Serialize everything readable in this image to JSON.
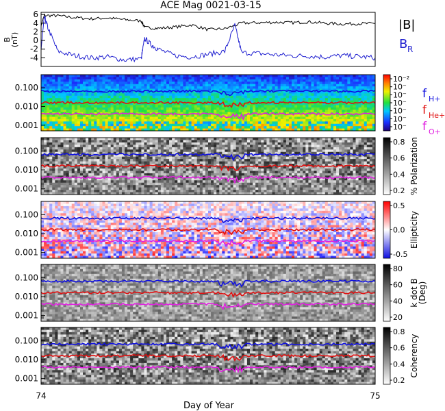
{
  "title": "ACE Mag 0021-03-15",
  "xlabel": "Day of Year",
  "x_ticks": [
    "74",
    "75"
  ],
  "xlim": [
    74,
    75
  ],
  "colors": {
    "B_total": "#000000",
    "B_R": "#1f1fd0",
    "f_H": "#1010e0",
    "f_He": "#e01010",
    "f_O": "#e020e0"
  },
  "legend": {
    "B_total": "|B|",
    "B_R": "B",
    "B_R_sub": "R",
    "f_H": "f",
    "f_H_sub": "H+",
    "f_He": "f",
    "f_He_sub": "He+",
    "f_O": "f",
    "f_O_sub": "O+"
  },
  "chart_data": [
    {
      "type": "line",
      "ylabel": "B",
      "ylabel_units": "(nT)",
      "ylim": [
        -6,
        6.5
      ],
      "y_ticks": [
        "6",
        "4",
        "2",
        "0",
        "-2",
        "-4"
      ],
      "series": [
        {
          "name": "|B|",
          "x": [
            74.0,
            74.01,
            74.05,
            74.1,
            74.15,
            74.2,
            74.25,
            74.3,
            74.31,
            74.35,
            74.4,
            74.45,
            74.5,
            74.55,
            74.6,
            74.65,
            74.7,
            74.75,
            74.8,
            74.85,
            74.9,
            74.95,
            75.0
          ],
          "values": [
            3.5,
            5.8,
            5.7,
            5.3,
            5.0,
            5.2,
            4.8,
            4.5,
            3.0,
            2.8,
            3.1,
            3.6,
            2.5,
            2.7,
            4.0,
            4.1,
            4.2,
            4.1,
            4.3,
            4.0,
            3.8,
            3.9,
            3.9
          ]
        },
        {
          "name": "B_R",
          "x": [
            74.0,
            74.01,
            74.02,
            74.05,
            74.1,
            74.15,
            74.2,
            74.25,
            74.3,
            74.31,
            74.33,
            74.35,
            74.4,
            74.45,
            74.5,
            74.55,
            74.58,
            74.6,
            74.65,
            74.7,
            74.75,
            74.8,
            74.85,
            74.9,
            74.95,
            75.0
          ],
          "values": [
            -2.0,
            5.5,
            3.0,
            -2.5,
            -3.5,
            -4.0,
            -3.8,
            -4.5,
            -4.2,
            0.5,
            -1.0,
            -2.0,
            -3.5,
            -3.8,
            -3.2,
            -2.5,
            3.5,
            -2.8,
            -3.0,
            -3.3,
            -3.5,
            -3.6,
            -3.8,
            -3.5,
            -3.7,
            -4.0
          ]
        }
      ]
    },
    {
      "type": "heatmap",
      "ylabel": "",
      "y_scale": "log",
      "ylim": [
        0.0005,
        0.5
      ],
      "y_ticks": [
        "0.100",
        "0.010",
        "0.001"
      ],
      "colorbar": {
        "label": "",
        "ticks": [
          "10⁻²",
          "10⁻",
          "10⁻",
          "10⁻",
          "10⁻",
          "10⁻",
          "10⁻"
        ]
      },
      "series": [
        {
          "name": "f_H+",
          "values": [
            0.065,
            0.065,
            0.062,
            0.06,
            0.058,
            0.06,
            0.055,
            0.05,
            0.045,
            0.055,
            0.06,
            0.06,
            0.065
          ]
        },
        {
          "name": "f_He+",
          "values": [
            0.017,
            0.016,
            0.016,
            0.015,
            0.015,
            0.015,
            0.014,
            0.013,
            0.011,
            0.014,
            0.015,
            0.015,
            0.016
          ]
        },
        {
          "name": "f_O+",
          "values": [
            0.0042,
            0.004,
            0.004,
            0.0038,
            0.0037,
            0.0038,
            0.0035,
            0.0032,
            0.0028,
            0.0035,
            0.0038,
            0.0038,
            0.004
          ]
        }
      ]
    },
    {
      "type": "heatmap",
      "ylabel": "",
      "y_scale": "log",
      "ylim": [
        0.0005,
        0.5
      ],
      "y_ticks": [
        "0.100",
        "0.010",
        "0.001"
      ],
      "colorbar": {
        "label": "% Polarization",
        "ticks": [
          "0.8",
          "0.6",
          "0.4",
          "0.2"
        ]
      }
    },
    {
      "type": "heatmap",
      "ylabel": "",
      "y_scale": "log",
      "ylim": [
        0.0005,
        0.5
      ],
      "y_ticks": [
        "0.100",
        "0.010",
        "0.001"
      ],
      "colorbar": {
        "label": "Ellipticity",
        "ticks": [
          "0.5",
          "0.0",
          "-0.5"
        ]
      }
    },
    {
      "type": "heatmap",
      "ylabel": "",
      "y_scale": "log",
      "ylim": [
        0.0005,
        0.5
      ],
      "y_ticks": [
        "0.100",
        "0.010",
        "0.001"
      ],
      "colorbar": {
        "label": "k dot B",
        "label2": "(Deg)",
        "ticks": [
          "80",
          "60",
          "40",
          "20"
        ]
      }
    },
    {
      "type": "heatmap",
      "ylabel": "",
      "y_scale": "log",
      "ylim": [
        0.0005,
        0.5
      ],
      "y_ticks": [
        "0.100",
        "0.010",
        "0.001"
      ],
      "colorbar": {
        "label": "Coherency",
        "ticks": [
          "0.8",
          "0.6",
          "0.4",
          "0.2"
        ]
      }
    }
  ]
}
